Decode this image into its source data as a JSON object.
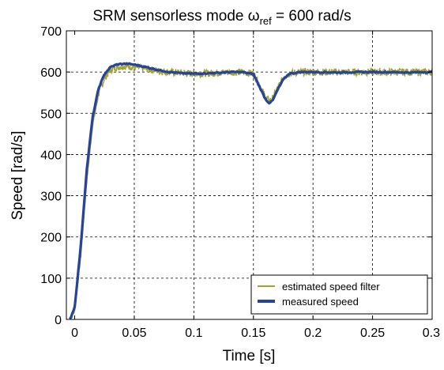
{
  "chart_data": {
    "type": "line",
    "title_main": "SRM sensorless mode ω",
    "title_sub": "ref",
    "title_tail": " = 600 rad/s",
    "xlabel": "Time [s]",
    "ylabel": "Speed [rad/s]",
    "xlim": [
      -0.007,
      0.3
    ],
    "ylim": [
      0,
      700
    ],
    "xticks": [
      0,
      0.05,
      0.1,
      0.15,
      0.2,
      0.25,
      0.3
    ],
    "xtick_labels": [
      "0",
      "0.05",
      "0.1",
      "0.15",
      "0.2",
      "0.25",
      "0.3"
    ],
    "yticks": [
      0,
      100,
      200,
      300,
      400,
      500,
      600,
      700
    ],
    "ytick_labels": [
      "0",
      "100",
      "200",
      "300",
      "400",
      "500",
      "600",
      "700"
    ],
    "grid": true,
    "legend_position": "bottom-right",
    "series": [
      {
        "name": "estimated speed filter",
        "color": "#a3a332",
        "style": "noisy",
        "x": [
          -0.004,
          0.0,
          0.005,
          0.01,
          0.015,
          0.02,
          0.025,
          0.03,
          0.035,
          0.04,
          0.045,
          0.05,
          0.06,
          0.07,
          0.08,
          0.09,
          0.1,
          0.11,
          0.12,
          0.13,
          0.14,
          0.15,
          0.155,
          0.16,
          0.163,
          0.166,
          0.17,
          0.175,
          0.18,
          0.19,
          0.2,
          0.22,
          0.24,
          0.26,
          0.28,
          0.3
        ],
        "y": [
          0,
          20,
          150,
          330,
          470,
          545,
          585,
          605,
          612,
          614,
          614,
          612,
          608,
          603,
          600,
          598,
          596,
          597,
          598,
          600,
          600,
          596,
          570,
          540,
          530,
          535,
          560,
          585,
          597,
          600,
          600,
          600,
          600,
          600,
          600,
          600
        ]
      },
      {
        "name": "measured speed",
        "color": "#26449b",
        "style": "solid",
        "x": [
          -0.004,
          0.0,
          0.005,
          0.01,
          0.015,
          0.02,
          0.025,
          0.03,
          0.035,
          0.04,
          0.045,
          0.05,
          0.06,
          0.07,
          0.08,
          0.09,
          0.1,
          0.11,
          0.12,
          0.13,
          0.14,
          0.15,
          0.155,
          0.16,
          0.163,
          0.166,
          0.17,
          0.175,
          0.18,
          0.19,
          0.2,
          0.22,
          0.24,
          0.26,
          0.28,
          0.3
        ],
        "y": [
          0,
          30,
          175,
          360,
          490,
          560,
          595,
          612,
          618,
          620,
          620,
          618,
          612,
          605,
          600,
          597,
          596,
          597,
          598,
          600,
          600,
          595,
          565,
          535,
          525,
          530,
          555,
          582,
          596,
          600,
          600,
          599,
          600,
          600,
          599,
          600
        ]
      }
    ]
  }
}
